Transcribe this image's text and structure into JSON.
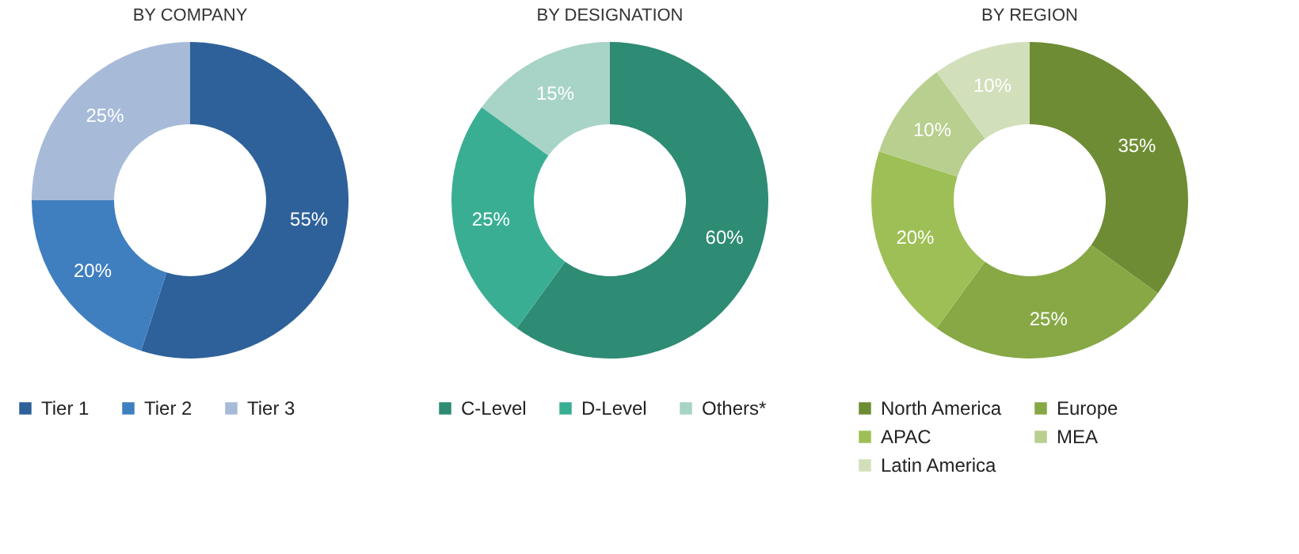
{
  "chart_data": [
    {
      "type": "donut",
      "title": "BY COMPANY",
      "categories": [
        "Tier 1",
        "Tier 2",
        "Tier 3"
      ],
      "values": [
        55,
        20,
        25
      ],
      "colors": [
        "#2e6199",
        "#3f7fc0",
        "#a7bbd9"
      ],
      "value_labels": [
        "55%",
        "20%",
        "25%"
      ],
      "legend": "bottom"
    },
    {
      "type": "donut",
      "title": "BY DESIGNATION",
      "categories": [
        "C-Level",
        "D-Level",
        "Others*"
      ],
      "values": [
        60,
        25,
        15
      ],
      "colors": [
        "#2e8b74",
        "#3aae93",
        "#a8d3c7"
      ],
      "value_labels": [
        "60%",
        "25%",
        "15%"
      ],
      "legend": "bottom"
    },
    {
      "type": "donut",
      "title": "BY REGION",
      "categories": [
        "North America",
        "Europe",
        "APAC",
        "MEA",
        "Latin America"
      ],
      "values": [
        35,
        25,
        20,
        10,
        10
      ],
      "colors": [
        "#6e8c34",
        "#87a845",
        "#9ebf55",
        "#b8cf8f",
        "#d2dfbb"
      ],
      "value_labels": [
        "35%",
        "25%",
        "20%",
        "10%",
        "10%"
      ],
      "legend": "bottom"
    }
  ]
}
